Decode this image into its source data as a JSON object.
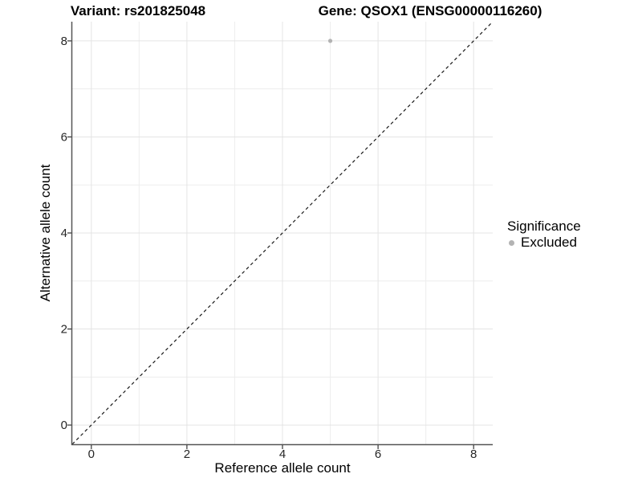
{
  "titles": {
    "variant": "Variant: rs201825048",
    "gene": "Gene: QSOX1 (ENSG00000116260)"
  },
  "axes": {
    "x_label": "Reference allele count",
    "y_label": "Alternative allele count"
  },
  "legend": {
    "title": "Significance",
    "items": [
      {
        "label": "Excluded",
        "color": "#b3b3b3"
      }
    ]
  },
  "colors": {
    "background": "#ffffff",
    "grid_major": "#e4e4e4",
    "grid_minor": "#ededed",
    "axis_line": "#555555",
    "tick_mark": "#333333",
    "tick_label": "#262626",
    "reference_line": "#1a1a1a",
    "point": "#b3b3b3"
  },
  "chart_data": {
    "type": "scatter",
    "title": "Variant: rs201825048   Gene: QSOX1 (ENSG00000116260)",
    "xlabel": "Reference allele count",
    "ylabel": "Alternative allele count",
    "xlim": [
      -0.4,
      8.4
    ],
    "ylim": [
      -0.4,
      8.4
    ],
    "x_ticks": [
      0,
      2,
      4,
      6,
      8
    ],
    "y_ticks": [
      0,
      2,
      4,
      6,
      8
    ],
    "x_minor_ticks": [
      1,
      3,
      5,
      7
    ],
    "y_minor_ticks": [
      1,
      3,
      5,
      7
    ],
    "grid": true,
    "legend_position": "right",
    "legend_title": "Significance",
    "series": [
      {
        "name": "Excluded",
        "color": "#b3b3b3",
        "points": [
          {
            "x": 5,
            "y": 8
          }
        ]
      }
    ],
    "reference_line": {
      "type": "identity",
      "style": "dashed",
      "from": [
        -0.4,
        -0.4
      ],
      "to": [
        8.4,
        8.4
      ]
    }
  }
}
